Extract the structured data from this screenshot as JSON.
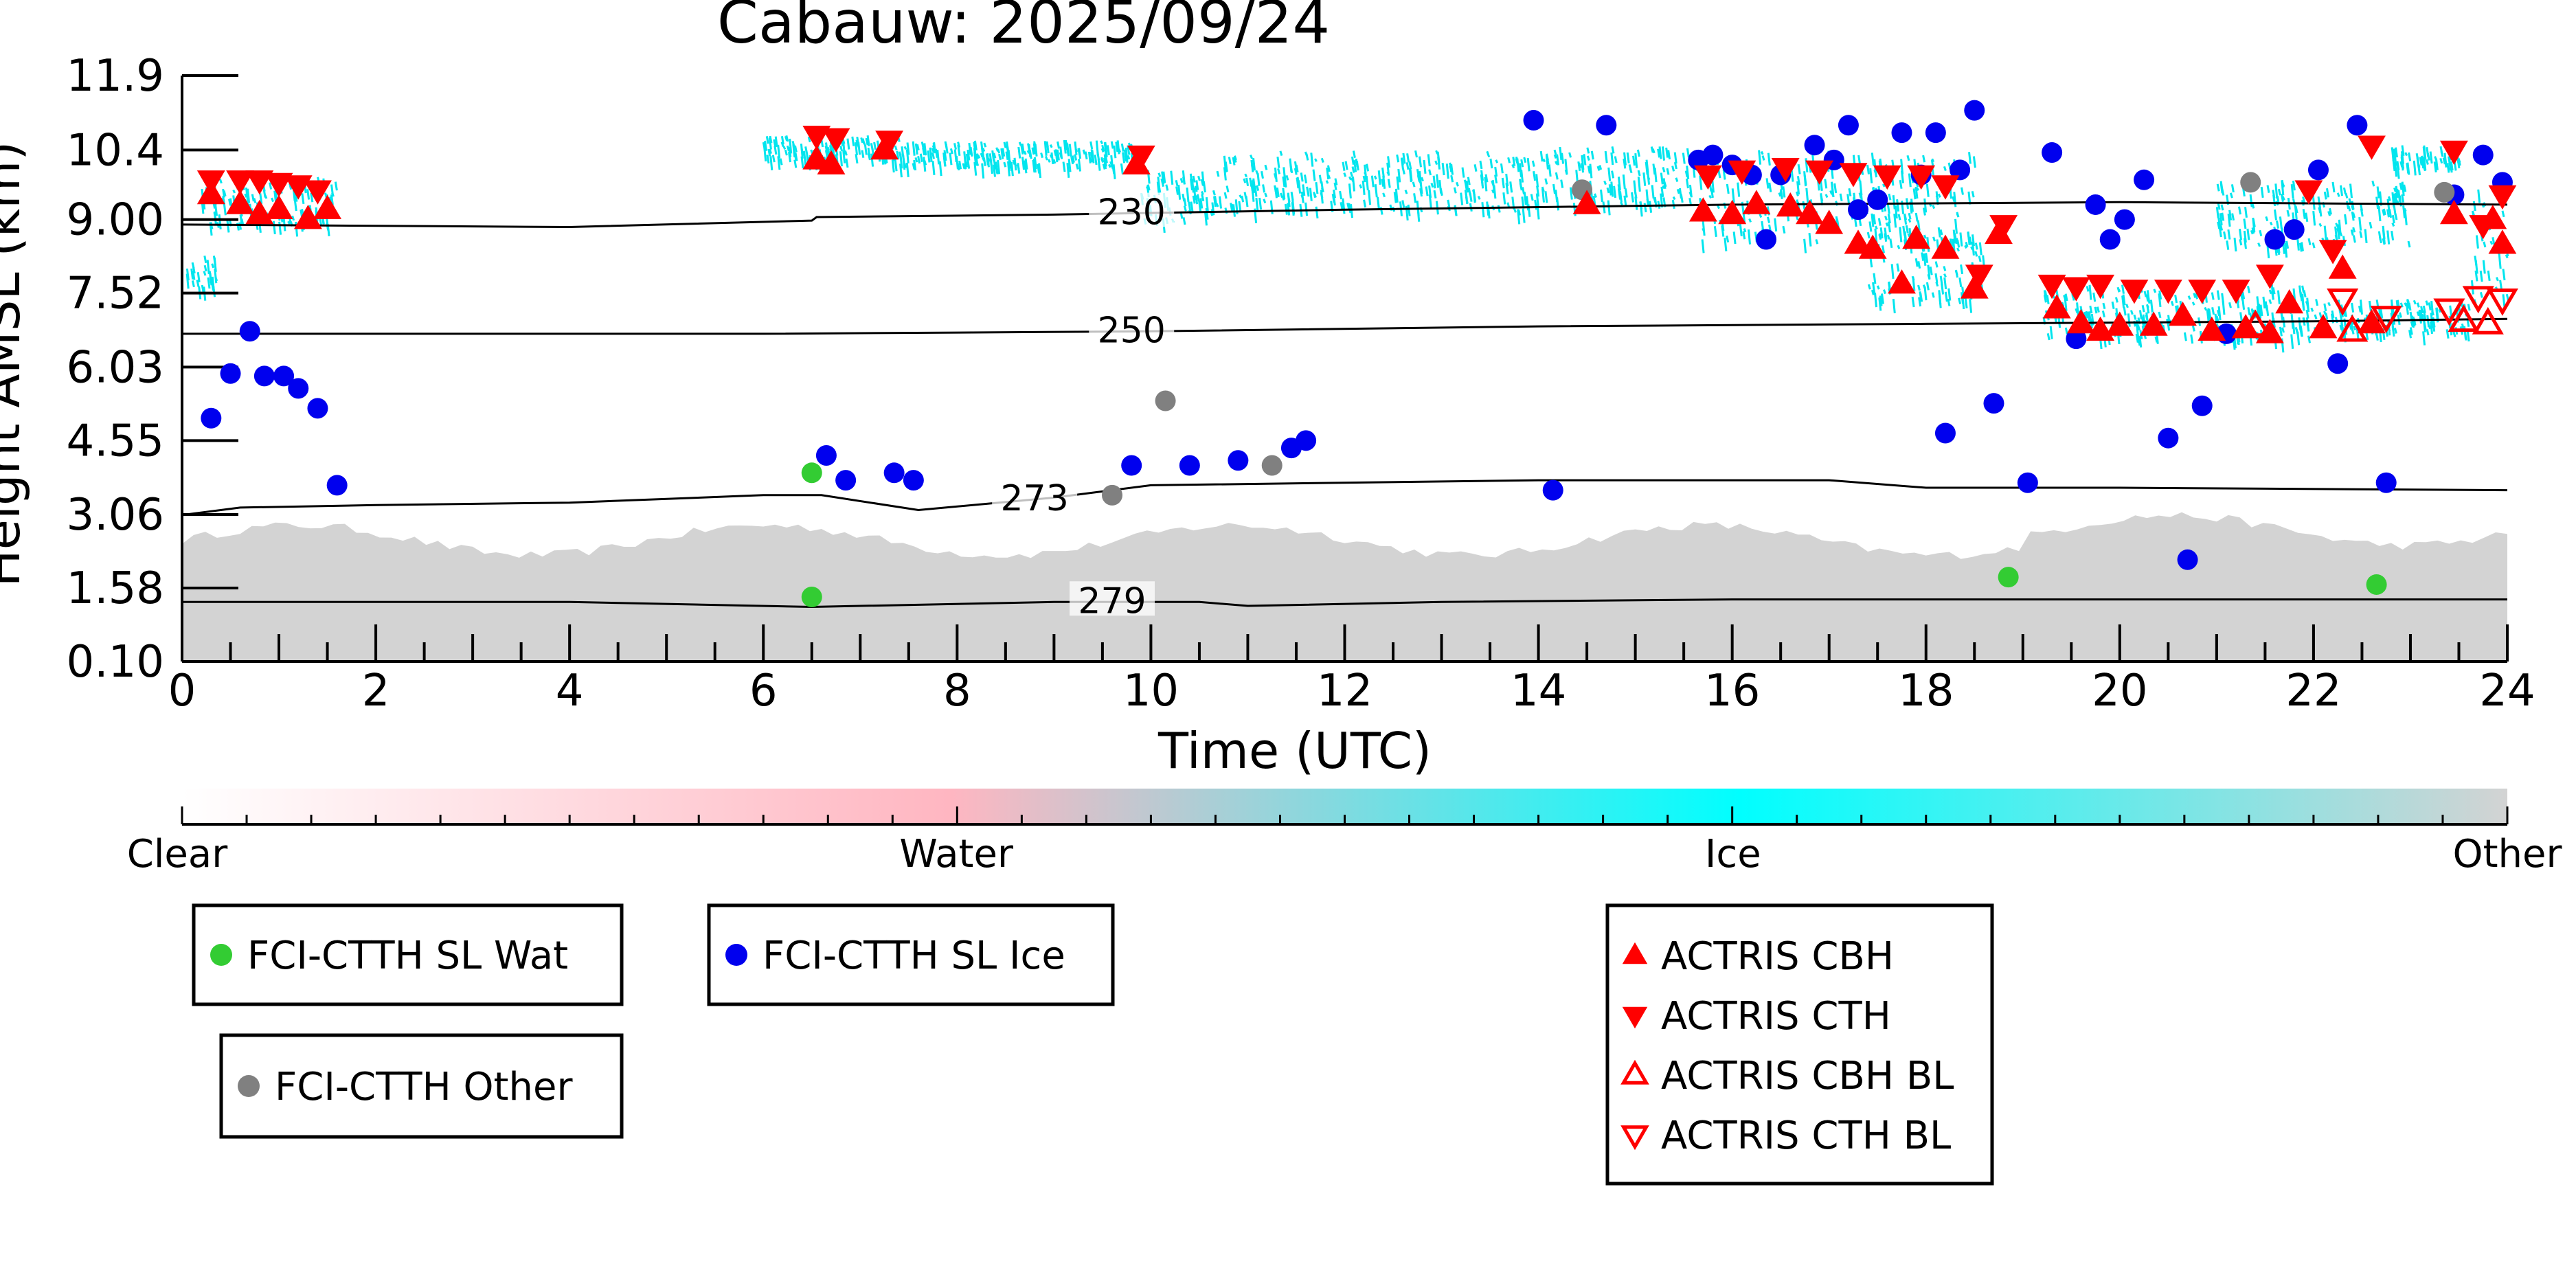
{
  "chart_data": {
    "type": "scatter",
    "title": "Cabauw: 2025/09/24",
    "xlabel": "Time (UTC)",
    "ylabel": "Height AMSL (km)",
    "xlim": [
      0,
      24
    ],
    "ylim": [
      0.1,
      11.9
    ],
    "x_ticks": [
      "0",
      "2",
      "4",
      "6",
      "8",
      "10",
      "12",
      "14",
      "16",
      "18",
      "20",
      "22",
      "24"
    ],
    "y_ticks": [
      "0.10",
      "1.58",
      "3.06",
      "4.55",
      "6.03",
      "7.52",
      "9.00",
      "10.4",
      "11.9"
    ],
    "colorbar": {
      "labels": [
        "Clear",
        "Water",
        "Ice",
        "Other"
      ],
      "colors": [
        "#ffffff",
        "#ffb6c1",
        "#00ffff",
        "#d3d3d3"
      ]
    },
    "contour_labels": [
      "230",
      "250",
      "273",
      "279"
    ],
    "colors": {
      "wat": "#33cc33",
      "ice": "#0000ee",
      "other": "#808080",
      "actris": "#ff0000",
      "cloud_ice": "#00e5ee",
      "cloud_low": "#d3d3d3"
    },
    "legend_boxes": [
      {
        "entries": [
          {
            "label": "FCI-CTTH SL Wat",
            "marker": "circle",
            "color": "#33cc33"
          }
        ]
      },
      {
        "entries": [
          {
            "label": "FCI-CTTH SL Ice",
            "marker": "circle",
            "color": "#0000ee"
          }
        ]
      },
      {
        "entries": [
          {
            "label": "FCI-CTTH Other",
            "marker": "circle",
            "color": "#808080"
          }
        ]
      },
      {
        "entries": [
          {
            "label": "ACTRIS CBH",
            "marker": "triangle-up",
            "color": "#ff0000"
          },
          {
            "label": "ACTRIS CTH",
            "marker": "triangle-down",
            "color": "#ff0000"
          },
          {
            "label": "ACTRIS CBH BL",
            "marker": "triangle-up-open",
            "color": "#ff0000"
          },
          {
            "label": "ACTRIS CTH BL",
            "marker": "triangle-down-open",
            "color": "#ff0000"
          }
        ]
      }
    ],
    "series": [
      {
        "name": "FCI-CTTH SL Wat",
        "points": [
          [
            6.5,
            3.9
          ],
          [
            6.5,
            1.4
          ],
          [
            18.85,
            1.8
          ],
          [
            22.65,
            1.65
          ]
        ]
      },
      {
        "name": "FCI-CTTH SL Ice",
        "points": [
          [
            0.3,
            5.0
          ],
          [
            0.5,
            5.9
          ],
          [
            0.7,
            6.75
          ],
          [
            0.85,
            5.85
          ],
          [
            1.05,
            5.85
          ],
          [
            1.2,
            5.6
          ],
          [
            1.4,
            5.2
          ],
          [
            1.6,
            3.65
          ],
          [
            6.65,
            4.25
          ],
          [
            6.85,
            3.75
          ],
          [
            7.35,
            3.9
          ],
          [
            7.55,
            3.75
          ],
          [
            9.8,
            4.05
          ],
          [
            10.4,
            4.05
          ],
          [
            10.9,
            4.15
          ],
          [
            11.45,
            4.4
          ],
          [
            11.6,
            4.55
          ],
          [
            13.95,
            11.0
          ],
          [
            14.15,
            3.55
          ],
          [
            14.7,
            10.9
          ],
          [
            15.65,
            10.2
          ],
          [
            15.8,
            10.3
          ],
          [
            16.0,
            10.1
          ],
          [
            16.2,
            9.9
          ],
          [
            16.35,
            8.6
          ],
          [
            16.5,
            9.9
          ],
          [
            16.85,
            10.5
          ],
          [
            17.05,
            10.2
          ],
          [
            17.2,
            10.9
          ],
          [
            17.3,
            9.2
          ],
          [
            17.5,
            9.4
          ],
          [
            17.75,
            10.75
          ],
          [
            17.95,
            9.9
          ],
          [
            18.1,
            10.75
          ],
          [
            18.2,
            4.7
          ],
          [
            18.35,
            10.0
          ],
          [
            18.5,
            11.2
          ],
          [
            18.7,
            5.3
          ],
          [
            19.05,
            3.7
          ],
          [
            19.3,
            10.35
          ],
          [
            19.55,
            6.6
          ],
          [
            19.75,
            9.3
          ],
          [
            19.9,
            8.6
          ],
          [
            20.05,
            9.0
          ],
          [
            20.25,
            9.8
          ],
          [
            20.5,
            4.6
          ],
          [
            20.7,
            2.15
          ],
          [
            20.85,
            5.25
          ],
          [
            21.1,
            6.7
          ],
          [
            21.6,
            8.6
          ],
          [
            21.8,
            8.8
          ],
          [
            22.05,
            10.0
          ],
          [
            22.25,
            6.1
          ],
          [
            22.45,
            10.9
          ],
          [
            22.75,
            3.7
          ],
          [
            23.45,
            9.5
          ],
          [
            23.75,
            10.3
          ],
          [
            23.95,
            9.75
          ]
        ]
      },
      {
        "name": "FCI-CTTH Other",
        "points": [
          [
            9.6,
            3.45
          ],
          [
            10.15,
            5.35
          ],
          [
            11.25,
            4.05
          ],
          [
            14.45,
            9.6
          ],
          [
            21.35,
            9.75
          ],
          [
            23.35,
            9.55
          ]
        ]
      },
      {
        "name": "ACTRIS CBH",
        "points": [
          [
            0.3,
            9.5
          ],
          [
            0.6,
            9.3
          ],
          [
            0.8,
            9.1
          ],
          [
            1.0,
            9.2
          ],
          [
            1.3,
            9.0
          ],
          [
            1.5,
            9.2
          ],
          [
            6.55,
            10.2
          ],
          [
            6.7,
            10.1
          ],
          [
            7.25,
            10.4
          ],
          [
            9.85,
            10.1
          ],
          [
            14.5,
            9.3
          ],
          [
            15.7,
            9.15
          ],
          [
            16.0,
            9.1
          ],
          [
            16.25,
            9.3
          ],
          [
            16.6,
            9.25
          ],
          [
            16.8,
            9.1
          ],
          [
            17.0,
            8.9
          ],
          [
            17.3,
            8.5
          ],
          [
            17.45,
            8.4
          ],
          [
            17.75,
            7.7
          ],
          [
            17.9,
            8.6
          ],
          [
            18.2,
            8.4
          ],
          [
            18.5,
            7.6
          ],
          [
            18.75,
            8.7
          ],
          [
            19.35,
            7.2
          ],
          [
            19.6,
            6.9
          ],
          [
            19.8,
            6.75
          ],
          [
            20.0,
            6.85
          ],
          [
            20.35,
            6.85
          ],
          [
            20.65,
            7.05
          ],
          [
            20.95,
            6.75
          ],
          [
            21.3,
            6.8
          ],
          [
            21.55,
            6.7
          ],
          [
            21.75,
            7.3
          ],
          [
            22.1,
            6.8
          ],
          [
            22.3,
            8.0
          ],
          [
            22.6,
            6.9
          ],
          [
            23.45,
            9.1
          ],
          [
            23.85,
            9.0
          ],
          [
            23.95,
            8.5
          ]
        ]
      },
      {
        "name": "ACTRIS CTH",
        "points": [
          [
            0.3,
            9.8
          ],
          [
            0.6,
            9.8
          ],
          [
            0.8,
            9.8
          ],
          [
            1.0,
            9.75
          ],
          [
            1.2,
            9.7
          ],
          [
            1.4,
            9.6
          ],
          [
            6.55,
            10.7
          ],
          [
            6.75,
            10.65
          ],
          [
            7.3,
            10.6
          ],
          [
            9.9,
            10.3
          ],
          [
            15.75,
            9.9
          ],
          [
            16.1,
            10.0
          ],
          [
            16.55,
            10.05
          ],
          [
            16.9,
            10.0
          ],
          [
            17.25,
            9.95
          ],
          [
            17.6,
            9.9
          ],
          [
            17.95,
            9.9
          ],
          [
            18.2,
            9.7
          ],
          [
            18.55,
            7.9
          ],
          [
            18.8,
            8.9
          ],
          [
            19.3,
            7.7
          ],
          [
            19.55,
            7.65
          ],
          [
            19.8,
            7.7
          ],
          [
            20.15,
            7.6
          ],
          [
            20.5,
            7.6
          ],
          [
            20.85,
            7.6
          ],
          [
            21.2,
            7.6
          ],
          [
            21.55,
            7.9
          ],
          [
            21.95,
            9.6
          ],
          [
            22.2,
            8.4
          ],
          [
            22.6,
            10.5
          ],
          [
            23.45,
            10.4
          ],
          [
            23.75,
            8.9
          ],
          [
            23.95,
            9.5
          ]
        ]
      },
      {
        "name": "ACTRIS CBH BL",
        "points": [
          [
            21.4,
            6.85
          ],
          [
            22.4,
            6.75
          ],
          [
            23.55,
            6.95
          ],
          [
            23.8,
            6.9
          ]
        ]
      },
      {
        "name": "ACTRIS CTH BL",
        "points": [
          [
            22.3,
            7.4
          ],
          [
            22.75,
            7.05
          ],
          [
            23.4,
            7.2
          ],
          [
            23.7,
            7.45
          ],
          [
            23.95,
            7.4
          ]
        ]
      }
    ]
  }
}
